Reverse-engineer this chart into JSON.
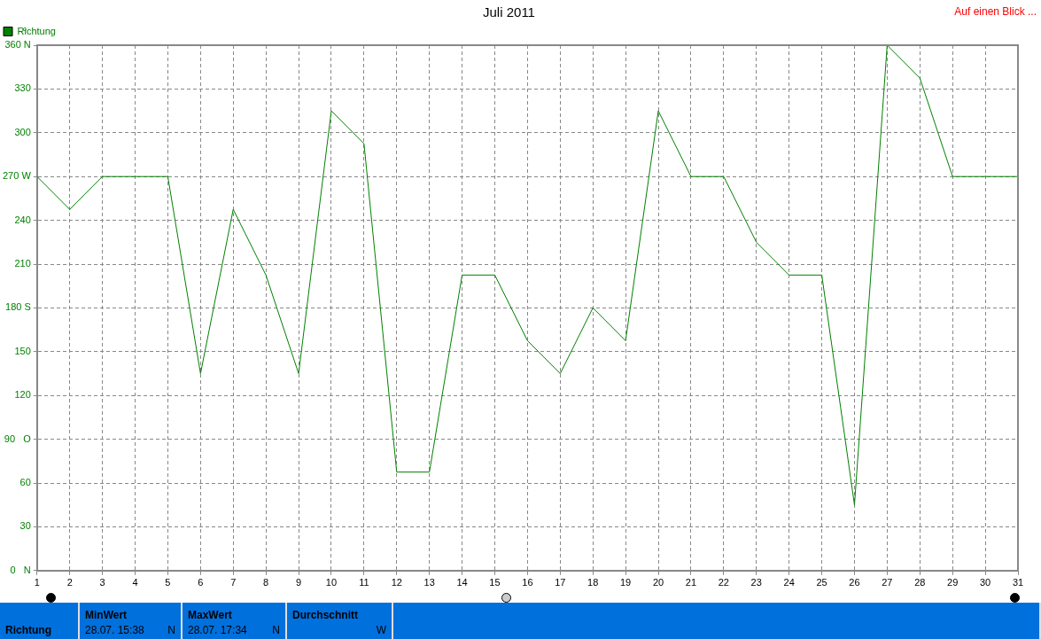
{
  "chart_data": {
    "type": "line",
    "title": "Juli 2011",
    "ylabel": "°",
    "x": [
      1,
      2,
      3,
      4,
      5,
      6,
      7,
      8,
      9,
      10,
      11,
      12,
      13,
      14,
      15,
      16,
      17,
      18,
      19,
      20,
      21,
      22,
      23,
      24,
      25,
      26,
      27,
      28,
      29,
      30,
      31
    ],
    "series": [
      {
        "name": "Richtung",
        "color": "#008000",
        "values": [
          270,
          247.5,
          270,
          270,
          270,
          135,
          247.5,
          202.5,
          135,
          315,
          292.5,
          67.5,
          67.5,
          202.5,
          202.5,
          157.5,
          135,
          180,
          157.5,
          315,
          270,
          270,
          225,
          202.5,
          202.5,
          45,
          360,
          337.5,
          270,
          270,
          270
        ]
      }
    ],
    "xlim": [
      1,
      31
    ],
    "xticks": [
      1,
      2,
      3,
      4,
      5,
      6,
      7,
      8,
      9,
      10,
      11,
      12,
      13,
      14,
      15,
      16,
      17,
      18,
      19,
      20,
      21,
      22,
      23,
      24,
      25,
      26,
      27,
      28,
      29,
      30,
      31
    ],
    "ylim": [
      0,
      360
    ],
    "yticks": [
      {
        "value": 0,
        "label": "0   N"
      },
      30,
      60,
      {
        "value": 90,
        "label": "90   O"
      },
      120,
      150,
      {
        "value": 180,
        "label": "180 S"
      },
      210,
      240,
      {
        "value": 270,
        "label": "270 W"
      },
      300,
      330,
      {
        "value": 360,
        "label": "360 N"
      }
    ],
    "grid": true,
    "legend": "top left",
    "marker": "none",
    "line_style": "solid",
    "annotations": [
      "Auf einen Blick ...",
      "Richtung",
      "MinWert",
      "28.07.  15:38",
      "N",
      "MaxWert",
      "28.07.  17:34",
      "N",
      "Durchschnitt",
      "W"
    ]
  }
}
